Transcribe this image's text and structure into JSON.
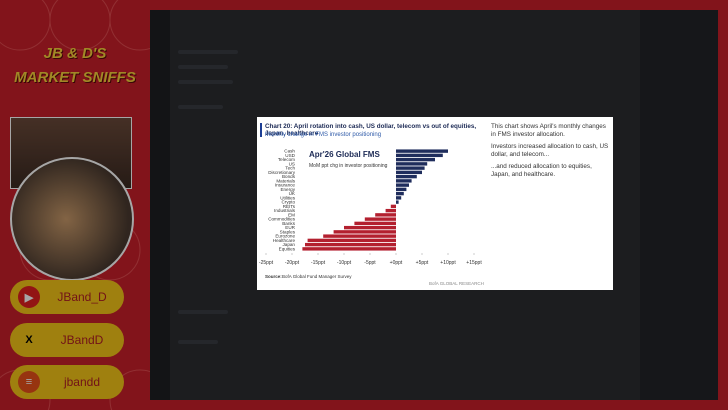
{
  "overlay": {
    "title_line1": "JB & D'S",
    "title_line2": "MARKET SNIFFS",
    "socials": [
      "JBand_D",
      "JBandD",
      "jbandd"
    ]
  },
  "slide": {
    "title": "Chart 20: April rotation into cash, US dollar, telecom vs out of equities, Japan, healthcare",
    "subtitle": "Monthly change in FMS investor positioning",
    "notes": [
      "This chart shows April's monthly changes in FMS investor allocation.",
      "Investors increased allocation to cash, US dollar, and telecom...",
      "...and reduced allocation to equities, Japan, and healthcare."
    ],
    "source_label": "Source:",
    "source": "BofA Global Fund Manager Survey",
    "brand": "BofA GLOBAL RESEARCH",
    "chart_data": {
      "type": "bar",
      "orientation": "horizontal",
      "title": "Apr'26 Global FMS",
      "subtitle": "MoM ppt chg in investor positioning",
      "categories": [
        "Cash",
        "USD",
        "Telecom",
        "US",
        "Tech",
        "Discretionary",
        "Bonds",
        "Materials",
        "Insurance",
        "Energy",
        "UK",
        "Utilities",
        "Crypto",
        "REITs",
        "Industrials",
        "EM",
        "Commodities",
        "Banks",
        "EUR",
        "Staples",
        "Eurozone",
        "Healthcare",
        "Japan",
        "Equities"
      ],
      "values": [
        10,
        9,
        7.5,
        6,
        5.5,
        5,
        4,
        3,
        2.5,
        2,
        1.5,
        1,
        0.5,
        -1,
        -2,
        -4,
        -6,
        -8,
        -10,
        -12,
        -14,
        -17,
        -17.5,
        -18
      ],
      "colors": {
        "positive": "#1f2d5c",
        "negative": "#b3202f"
      },
      "xlim": [
        -25,
        15
      ],
      "xticks": [
        {
          "value": -25,
          "label": "-25ppt"
        },
        {
          "value": -20,
          "label": "-20ppt"
        },
        {
          "value": -15,
          "label": "-15ppt"
        },
        {
          "value": -10,
          "label": "-10ppt"
        },
        {
          "value": -5,
          "label": "-5ppt"
        },
        {
          "value": 0,
          "label": "+0ppt"
        },
        {
          "value": 5,
          "label": "+5ppt"
        },
        {
          "value": 10,
          "label": "+10ppt"
        },
        {
          "value": 15,
          "label": "+15ppt"
        }
      ]
    }
  }
}
